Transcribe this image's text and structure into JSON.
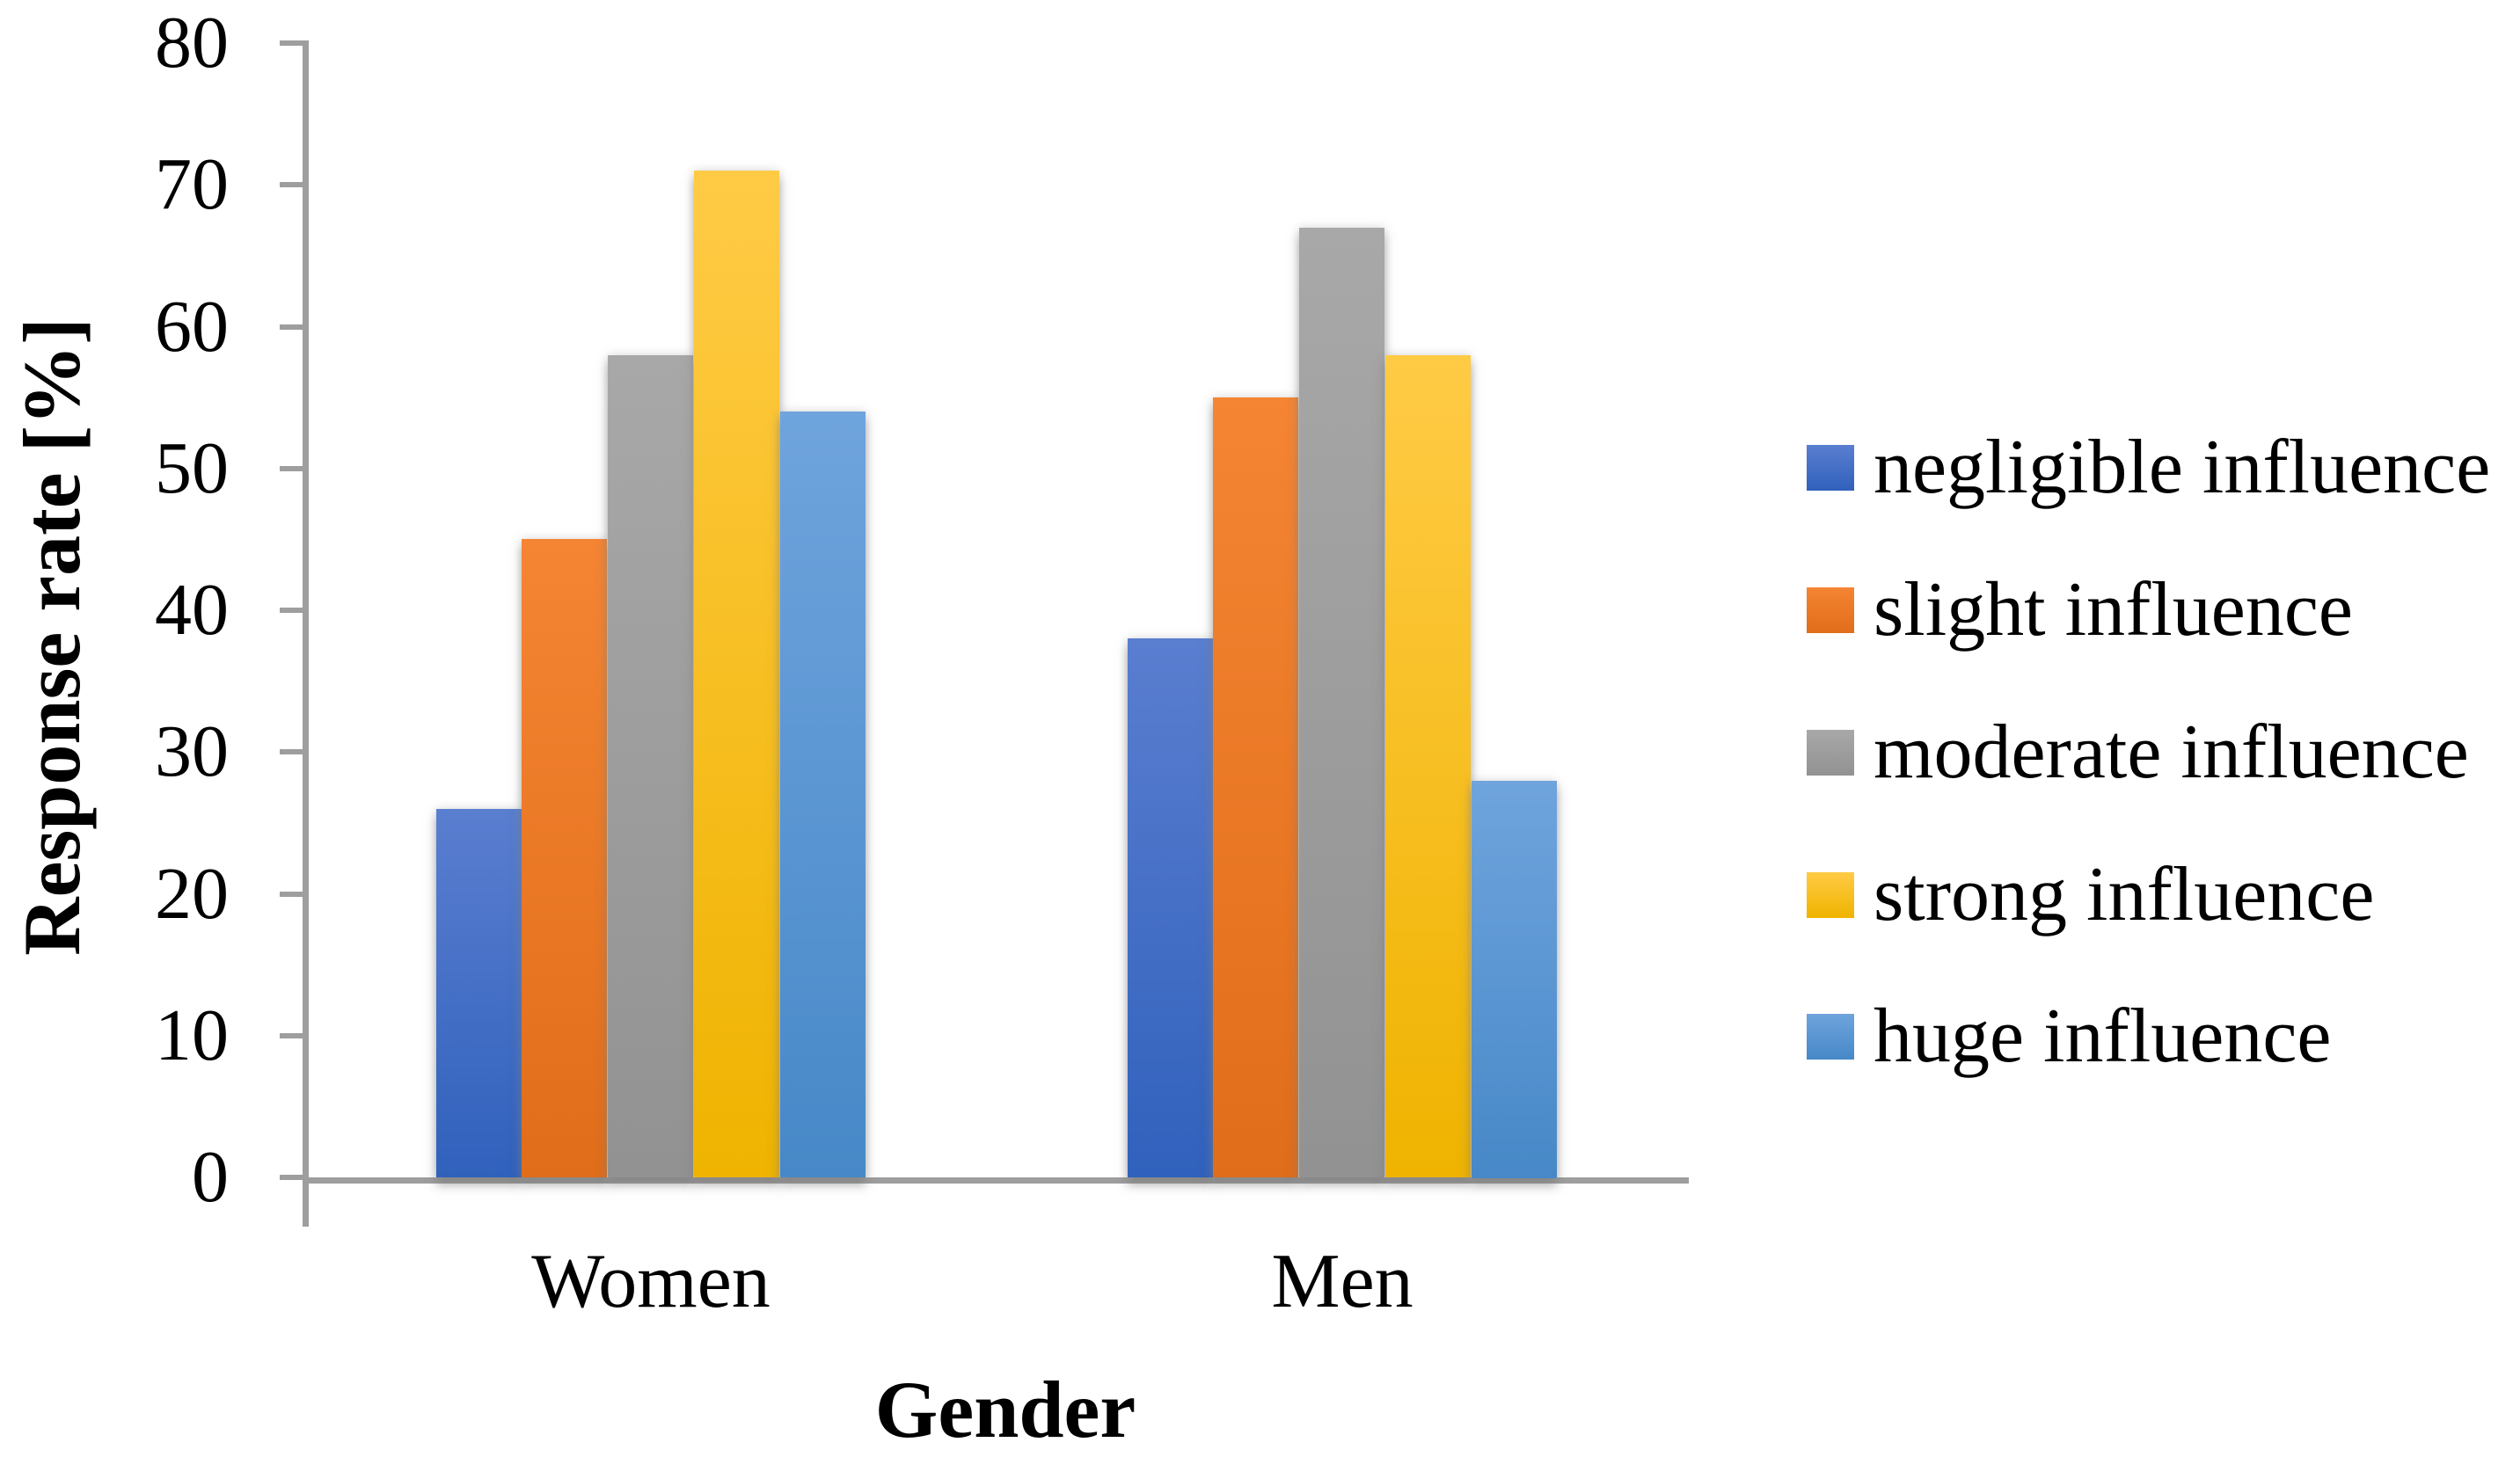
{
  "chart_data": {
    "type": "bar",
    "title": "",
    "xlabel": "Gender",
    "ylabel": "Response rate [%]",
    "categories": [
      "Women",
      "Men"
    ],
    "series": [
      {
        "name": "negligible influence",
        "values": [
          26,
          38
        ],
        "color": "#4472C4",
        "color_top": "#5A7ED0",
        "color_bottom": "#3061BC"
      },
      {
        "name": "slight influence",
        "values": [
          45,
          55
        ],
        "color": "#ED7D31",
        "color_top": "#F58533",
        "color_bottom": "#E06D19"
      },
      {
        "name": "moderate influence",
        "values": [
          58,
          67
        ],
        "color": "#A5A5A5",
        "color_top": "#A8A8A8",
        "color_bottom": "#929292"
      },
      {
        "name": "strong influence",
        "values": [
          71,
          58
        ],
        "color": "#FFC000",
        "color_top": "#FFCB45",
        "color_bottom": "#EFB300"
      },
      {
        "name": "huge influence",
        "values": [
          54,
          28
        ],
        "color": "#5B9BD5",
        "color_top": "#6FA4DD",
        "color_bottom": "#4788C8"
      }
    ],
    "ylim": [
      0,
      80
    ],
    "ytick_step": 10,
    "ytick_labels": [
      "0",
      "10",
      "20",
      "30",
      "40",
      "50",
      "60",
      "70",
      "80"
    ],
    "grid": false,
    "legend_position": "right",
    "axis_color": "#9E9E9E"
  }
}
